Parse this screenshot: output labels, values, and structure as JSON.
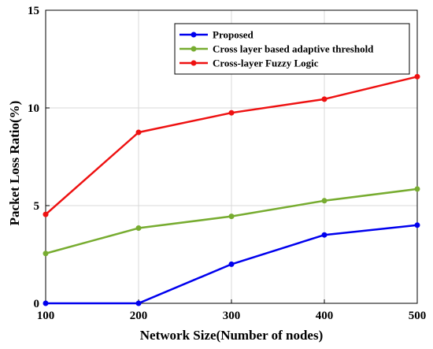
{
  "chart_data": {
    "type": "line",
    "xlabel": "Network Size(Number of nodes)",
    "ylabel": "Packet Loss Ratio(%)",
    "x": [
      100,
      200,
      300,
      400,
      500
    ],
    "xticks": [
      100,
      200,
      300,
      400,
      500
    ],
    "yticks": [
      0,
      5,
      10,
      15
    ],
    "xlim": [
      100,
      500
    ],
    "ylim": [
      0,
      15
    ],
    "grid": true,
    "legend_position": "top-right",
    "series": [
      {
        "name": "Proposed",
        "color": "#0000ee",
        "values": [
          0,
          0,
          2,
          3.5,
          4
        ]
      },
      {
        "name": "Cross layer based adaptive threshold",
        "color": "#77ac30",
        "values": [
          2.55,
          3.85,
          4.45,
          5.25,
          5.85
        ]
      },
      {
        "name": "Cross-layer Fuzzy Logic",
        "color": "#ee1111",
        "values": [
          4.55,
          8.75,
          9.75,
          10.45,
          11.6
        ]
      }
    ]
  }
}
